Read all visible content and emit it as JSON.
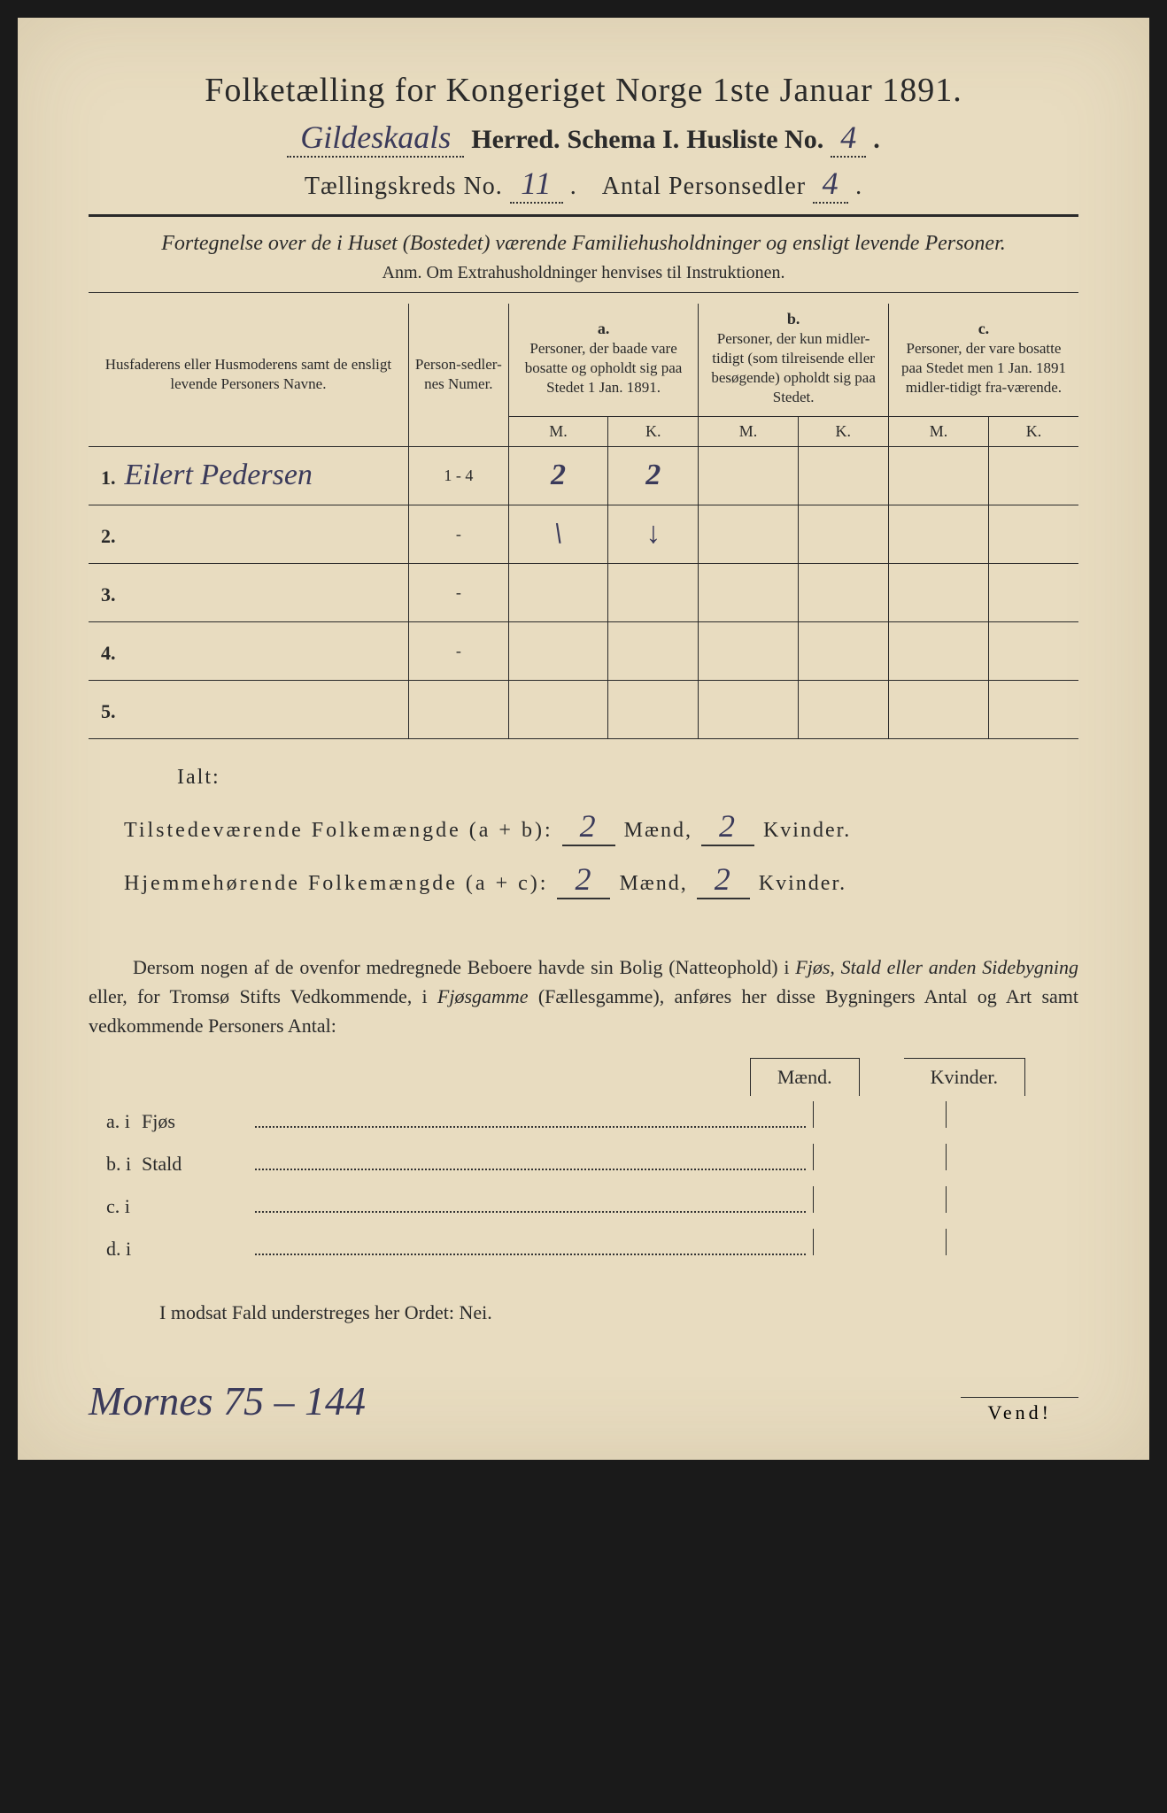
{
  "title": "Folketælling for Kongeriget Norge 1ste Januar 1891.",
  "header": {
    "herred_hw": "Gildeskaals",
    "herred_label": "Herred.",
    "schema_label": "Schema I.",
    "husliste_label": "Husliste No.",
    "husliste_hw": "4",
    "taellingskreds_label": "Tællingskreds No.",
    "taellingskreds_hw": "11",
    "antal_label": "Antal Personsedler",
    "antal_hw": "4"
  },
  "description": "Fortegnelse over de i Huset (Bostedet) værende Familiehusholdninger og ensligt levende Personer.",
  "anm": "Anm. Om Extrahusholdninger henvises til Instruktionen.",
  "table": {
    "col1": "Husfaderens eller Husmoderens samt de ensligt levende Personers Navne.",
    "col2": "Person-sedler-nes Numer.",
    "col_a_label": "a.",
    "col_a": "Personer, der baade vare bosatte og opholdt sig paa Stedet 1 Jan. 1891.",
    "col_b_label": "b.",
    "col_b": "Personer, der kun midler-tidigt (som tilreisende eller besøgende) opholdt sig paa Stedet.",
    "col_c_label": "c.",
    "col_c": "Personer, der vare bosatte paa Stedet men 1 Jan. 1891 midler-tidigt fra-værende.",
    "m": "M.",
    "k": "K.",
    "rows": [
      {
        "num": "1.",
        "name": "Eilert Pedersen",
        "sedler": "1 - 4",
        "a_m": "2",
        "a_k": "2",
        "b_m": "",
        "b_k": "",
        "c_m": "",
        "c_k": ""
      },
      {
        "num": "2.",
        "name": "",
        "sedler": "-",
        "a_m": "\\",
        "a_k": "↓",
        "b_m": "",
        "b_k": "",
        "c_m": "",
        "c_k": ""
      },
      {
        "num": "3.",
        "name": "",
        "sedler": "-",
        "a_m": "",
        "a_k": "",
        "b_m": "",
        "b_k": "",
        "c_m": "",
        "c_k": ""
      },
      {
        "num": "4.",
        "name": "",
        "sedler": "-",
        "a_m": "",
        "a_k": "",
        "b_m": "",
        "b_k": "",
        "c_m": "",
        "c_k": ""
      },
      {
        "num": "5.",
        "name": "",
        "sedler": "",
        "a_m": "",
        "a_k": "",
        "b_m": "",
        "b_k": "",
        "c_m": "",
        "c_k": ""
      }
    ]
  },
  "totals": {
    "ialt": "Ialt:",
    "tilstede_label": "Tilstedeværende Folkemængde (a + b):",
    "hjemme_label": "Hjemmehørende Folkemængde (a + c):",
    "maend": "Mænd,",
    "kvinder": "Kvinder.",
    "tilstede_m": "2",
    "tilstede_k": "2",
    "hjemme_m": "2",
    "hjemme_k": "2"
  },
  "paragraph": {
    "text1": "Dersom nogen af de ovenfor medregnede Beboere havde sin Bolig (Natteophold) i ",
    "em1": "Fjøs, Stald eller anden Sidebygning",
    "text2": " eller, for Tromsø Stifts Vedkommende, i ",
    "em2": "Fjøsgamme",
    "text3": " (Fællesgamme), anføres her disse Bygningers Antal og Art samt vedkommende Personers Antal:"
  },
  "buildings": {
    "maend": "Mænd.",
    "kvinder": "Kvinder.",
    "rows": [
      {
        "lbl": "a. i",
        "type": "Fjøs"
      },
      {
        "lbl": "b. i",
        "type": "Stald"
      },
      {
        "lbl": "c. i",
        "type": ""
      },
      {
        "lbl": "d. i",
        "type": ""
      }
    ]
  },
  "nei_line": "I modsat Fald understreges her Ordet: Nei.",
  "footer": {
    "hw": "Mornes 75 – 144",
    "vend": "Vend!"
  },
  "colors": {
    "paper": "#e8dcc0",
    "ink": "#2a2a2a",
    "handwriting": "#3a3a5a",
    "background": "#1a1a1a"
  }
}
